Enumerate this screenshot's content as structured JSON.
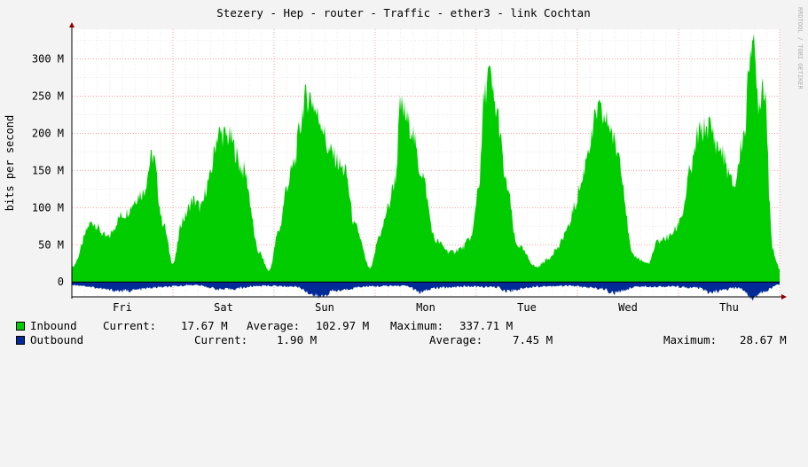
{
  "chart_data": {
    "type": "area",
    "title": "Stezery - Hep - router - Traffic - ether3 - link Cochtan",
    "ylabel": "bits per second",
    "watermark": "RRDTOOL / TOBI OETIKER",
    "ylim": [
      -20,
      340
    ],
    "y_unit": "M",
    "y_ticks": [
      {
        "value": 0,
        "label": "0"
      },
      {
        "value": 50,
        "label": "50 M"
      },
      {
        "value": 100,
        "label": "100 M"
      },
      {
        "value": 150,
        "label": "150 M"
      },
      {
        "value": 200,
        "label": "200 M"
      },
      {
        "value": 250,
        "label": "250 M"
      },
      {
        "value": 300,
        "label": "300 M"
      }
    ],
    "x_ticks": [
      "Fri",
      "Sat",
      "Sun",
      "Mon",
      "Tue",
      "Wed",
      "Thu"
    ],
    "x_range_days": [
      0,
      7
    ],
    "grid": true,
    "colors": {
      "inbound": "#00cc00",
      "outbound": "#002a97",
      "background": "#f3f3f3",
      "plot": "#ffffff",
      "grid": "#ff9f9f",
      "axis": "#000000",
      "arrow": "#8b0000"
    },
    "series": [
      {
        "name": "Inbound",
        "color": "#00cc00",
        "x_days": [
          0,
          0.2,
          0.35,
          0.5,
          0.7,
          0.8,
          0.9,
          1.0,
          1.1,
          1.2,
          1.28,
          1.35,
          1.45,
          1.55,
          1.7,
          1.85,
          1.95,
          2.05,
          2.13,
          2.2,
          2.26,
          2.3,
          2.35,
          2.45,
          2.55,
          2.7,
          2.8,
          2.95,
          3.05,
          3.13,
          3.18,
          3.2,
          3.25,
          3.35,
          3.45,
          3.6,
          3.75,
          3.85,
          3.95,
          4.03,
          4.08,
          4.12,
          4.2,
          4.3,
          4.4,
          4.6,
          4.7,
          4.8,
          4.9,
          4.97,
          5.03,
          5.12,
          5.2,
          5.3,
          5.4,
          5.55,
          5.7,
          5.8,
          5.9,
          5.97,
          6.03,
          6.12,
          6.2,
          6.3,
          6.4,
          6.55,
          6.65,
          6.72,
          6.8,
          6.83,
          6.86,
          6.88,
          6.9,
          6.93,
          6.97,
          7.0
        ],
        "values": [
          20,
          80,
          60,
          90,
          120,
          170,
          80,
          25,
          85,
          110,
          100,
          135,
          200,
          195,
          150,
          40,
          15,
          70,
          130,
          160,
          210,
          245,
          250,
          220,
          175,
          150,
          75,
          18,
          65,
          100,
          130,
          140,
          235,
          210,
          150,
          55,
          40,
          45,
          60,
          135,
          250,
          280,
          230,
          130,
          50,
          20,
          30,
          45,
          70,
          100,
          130,
          185,
          230,
          215,
          175,
          35,
          25,
          55,
          60,
          70,
          90,
          150,
          200,
          210,
          180,
          130,
          200,
          330,
          240,
          270,
          260,
          190,
          110,
          45,
          25,
          18
        ]
      },
      {
        "name": "Outbound",
        "color": "#002a97",
        "x_days": [
          0,
          0.5,
          0.9,
          1.2,
          1.5,
          1.9,
          2.2,
          2.45,
          2.6,
          2.9,
          3.3,
          3.45,
          3.6,
          3.9,
          4.2,
          4.3,
          4.6,
          4.9,
          5.25,
          5.35,
          5.6,
          5.9,
          6.2,
          6.3,
          6.6,
          6.75,
          6.85,
          7.0
        ],
        "values": [
          -4,
          -12,
          -7,
          -4,
          -10,
          -5,
          -6,
          -20,
          -12,
          -6,
          -5,
          -14,
          -8,
          -6,
          -7,
          -12,
          -6,
          -5,
          -9,
          -15,
          -6,
          -6,
          -8,
          -14,
          -8,
          -22,
          -12,
          -3
        ]
      }
    ]
  },
  "legend": {
    "inbound": {
      "label": "Inbound",
      "current_label": "Current:",
      "current": "17.67 M",
      "average_label": "Average:",
      "average": "102.97 M",
      "maximum_label": "Maximum:",
      "maximum": "337.71 M"
    },
    "outbound": {
      "label": "Outbound",
      "current_label": "Current:",
      "current": "1.90 M",
      "average_label": "Average:",
      "average": "7.45 M",
      "maximum_label": "Maximum:",
      "maximum": "28.67 M"
    }
  }
}
